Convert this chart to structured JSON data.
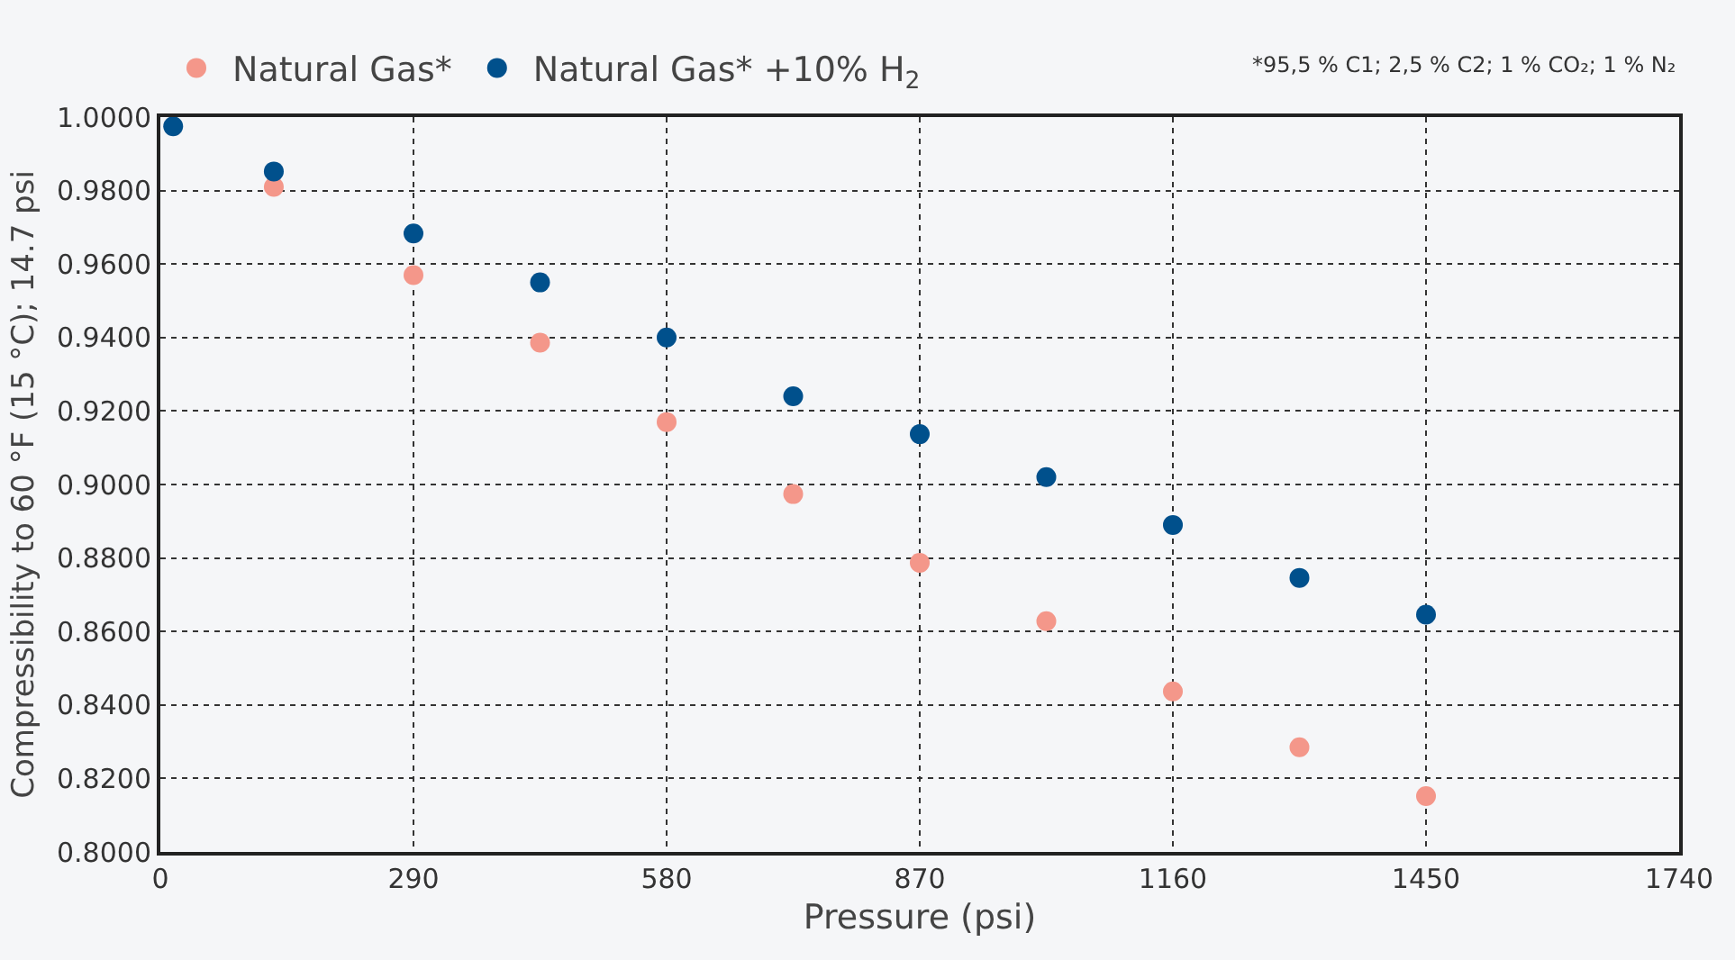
{
  "chart_data": {
    "type": "scatter",
    "xlabel": "Pressure (psi)",
    "ylabel": "Compressibility to 60 °F (15 °C); 14.7 psi",
    "annotations": [
      "*95,5 % C1; 2,5 % C2; 1 % CO₂; 1 % N₂"
    ],
    "x": [
      14.7,
      130,
      290,
      435,
      580,
      725,
      870,
      1015,
      1160,
      1305,
      1450
    ],
    "series": [
      {
        "name": "Natural Gas*",
        "color": "#f4978a",
        "values": [
          null,
          0.981,
          0.957,
          0.9386,
          0.917,
          0.8974,
          0.8787,
          0.8628,
          0.8437,
          0.8285,
          0.8152
        ]
      },
      {
        "name": "Natural Gas* +10% H$_{2}$",
        "color": "#00508c",
        "values": [
          0.9975,
          0.9852,
          0.9683,
          0.955,
          0.94,
          0.924,
          0.9137,
          0.902,
          0.889,
          0.8746,
          0.8646
        ]
      }
    ],
    "xlim": [
      0,
      1740
    ],
    "xticks": [
      0,
      290,
      580,
      870,
      1160,
      1450,
      1740
    ],
    "ylim": [
      0.8,
      1.0
    ],
    "yticks": [
      {
        "value": 0.8,
        "label": "0.8000"
      },
      {
        "value": 0.82,
        "label": "0.8200"
      },
      {
        "value": 0.84,
        "label": "0.8400"
      },
      {
        "value": 0.86,
        "label": "0.8600"
      },
      {
        "value": 0.88,
        "label": "0.8800"
      },
      {
        "value": 0.9,
        "label": "0.9000"
      },
      {
        "value": 0.92,
        "label": "0.9200"
      },
      {
        "value": 0.94,
        "label": "0.9400"
      },
      {
        "value": 0.96,
        "label": "0.9600"
      },
      {
        "value": 0.98,
        "label": "0.9800"
      },
      {
        "value": 1.0,
        "label": "1.0000"
      }
    ],
    "grid": true,
    "legend": "top left",
    "marker": "circle"
  }
}
